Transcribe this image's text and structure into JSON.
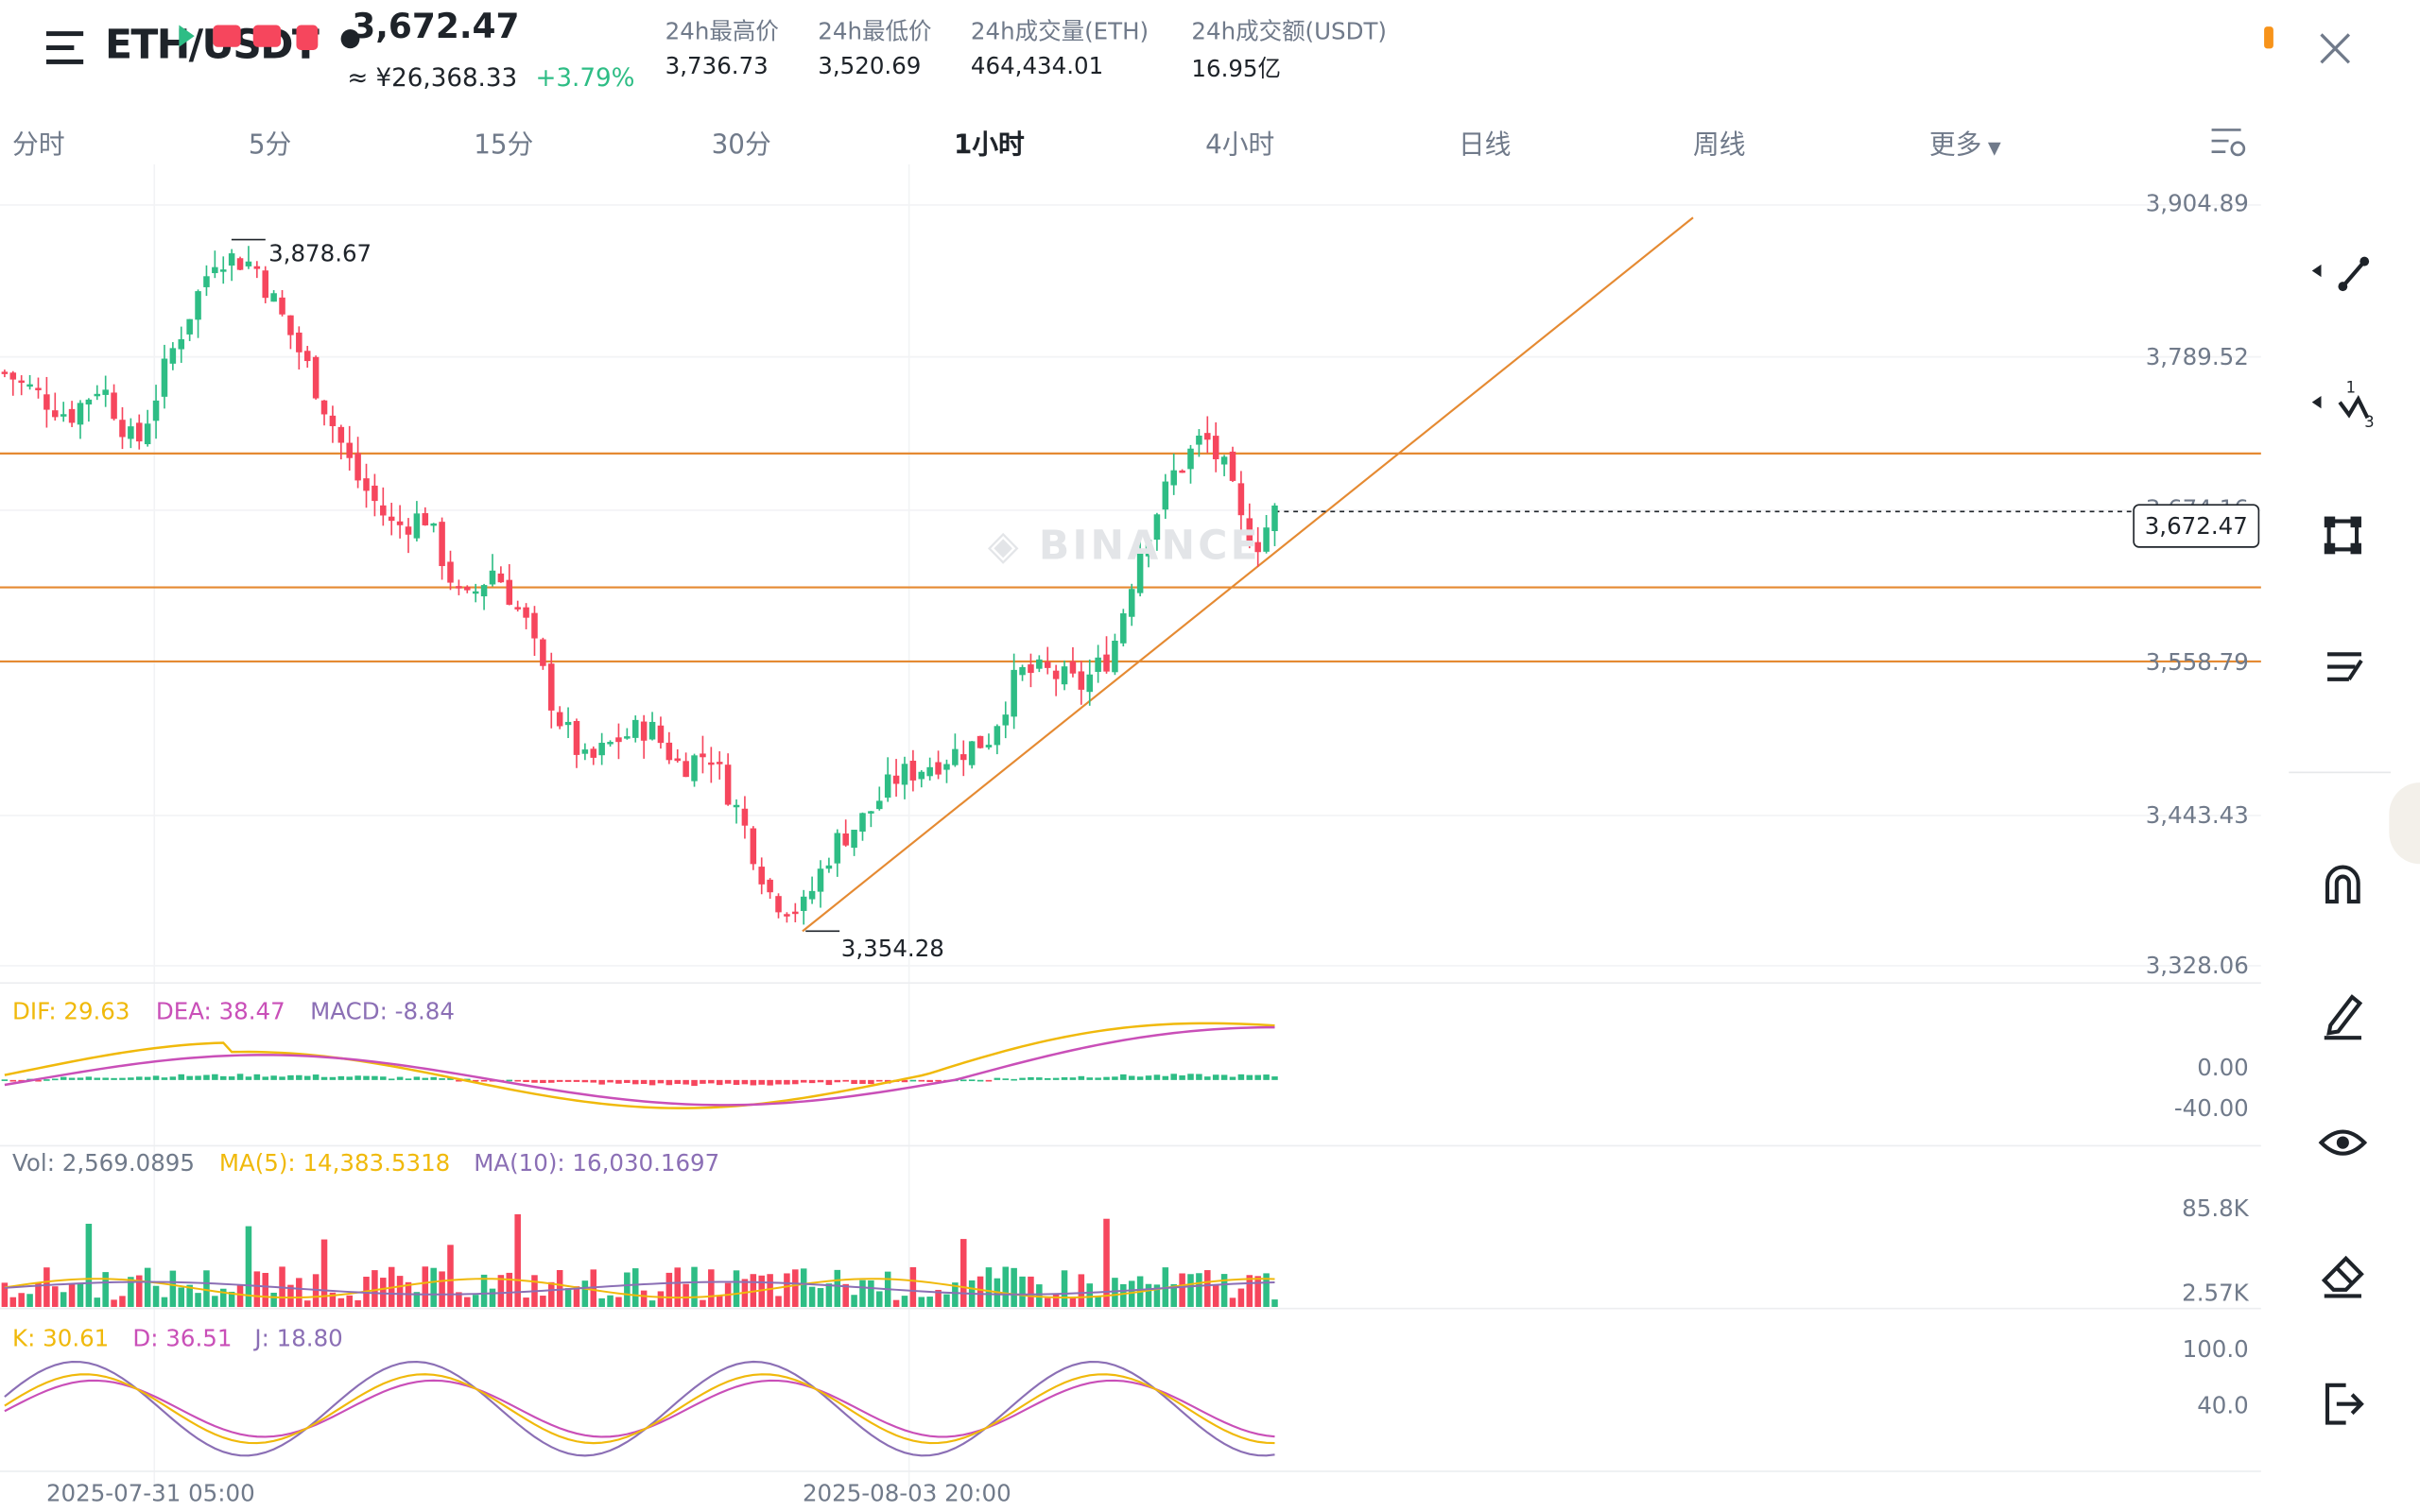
{
  "header": {
    "pair": "ETH/USDT",
    "price": "3,672.47",
    "cny_price": "≈ ¥26,368.33",
    "change": "+3.79%",
    "stats": [
      {
        "label": "24h最高价",
        "value": "3,736.73"
      },
      {
        "label": "24h最低价",
        "value": "3,520.69"
      },
      {
        "label": "24h成交量(ETH)",
        "value": "464,434.01"
      },
      {
        "label": "24h成交额(USDT)",
        "value": "16.95亿"
      }
    ]
  },
  "tabs": [
    {
      "label": "分时"
    },
    {
      "label": "5分"
    },
    {
      "label": "15分"
    },
    {
      "label": "30分"
    },
    {
      "label": "1小时",
      "active": true
    },
    {
      "label": "4小时"
    },
    {
      "label": "日线"
    },
    {
      "label": "周线"
    },
    {
      "label": "更多"
    }
  ],
  "watermark": "BINANCE",
  "price_axis": [
    "3,904.89",
    "3,789.52",
    "3,674.16",
    "3,558.79",
    "3,443.43",
    "3,328.06"
  ],
  "current_price_label": "3,672.47",
  "annotations": {
    "high": "3,878.67",
    "low": "3,354.28"
  },
  "macd": {
    "dif": "DIF: 29.63",
    "dea": "DEA: 38.47",
    "macd": "MACD: -8.84",
    "axis": [
      "0.00",
      "-40.00"
    ]
  },
  "volume": {
    "vol": "Vol: 2,569.0895",
    "ma5": "MA(5): 14,383.5318",
    "ma10": "MA(10): 16,030.1697",
    "axis": [
      "85.8K",
      "2.57K"
    ]
  },
  "kdj": {
    "k": "K: 30.61",
    "d": "D: 36.51",
    "j": "J: 18.80",
    "axis": [
      "100.0",
      "40.0"
    ]
  },
  "time_axis": [
    "2025-07-31 05:00",
    "2025-08-03 20:00"
  ],
  "toolbar": [
    "line-tool-icon",
    "multi-line-tool-icon",
    "shape-tool-icon",
    "fib-tool-icon",
    "magnet-icon",
    "pencil-icon",
    "eye-icon",
    "eraser-icon",
    "exit-icon"
  ],
  "colors": {
    "up": "#2ebd85",
    "down": "#f6465d",
    "drawing": "#e58a32",
    "dif": "#f0b90b",
    "dea": "#c94fb8",
    "macd": "#8b6fb5"
  },
  "chart_data": {
    "type": "candlestick",
    "interval": "1小时",
    "y_range": [
      3328.06,
      3904.89
    ],
    "last_price": 3672.47,
    "visible_high": 3878.67,
    "visible_low": 3354.28,
    "horizontal_lines": [
      3716.5,
      3615.0,
      3558.79
    ],
    "trendline": {
      "from": 3354.28,
      "through": 3615.0
    }
  }
}
